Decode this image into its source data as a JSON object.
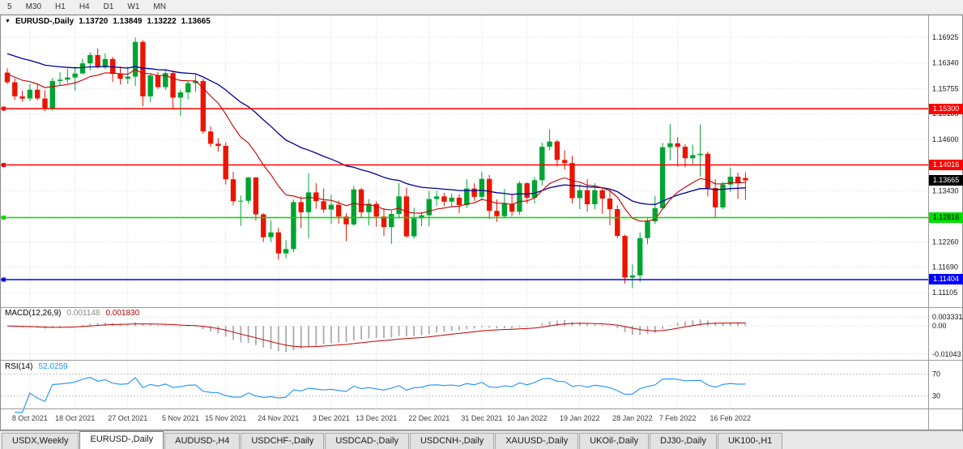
{
  "toolbar": {
    "timeframes": [
      "5",
      "M30",
      "H1",
      "H4",
      "D1",
      "W1",
      "MN"
    ]
  },
  "chart": {
    "title": {
      "symbol_period": "EURUSD-,Daily",
      "open": "1.13720",
      "high": "1.13849",
      "low": "1.13222",
      "close": "1.13665"
    },
    "colors": {
      "bull": "#00A432",
      "bear": "#EA1500",
      "ma_fast": "#C00000",
      "ma_slow": "#00009B",
      "grid": "#D9D9D9",
      "macd_hist": "#ABABAB",
      "macd_signal": "#C00000",
      "rsi_line": "#1E90FF"
    },
    "price_axis": {
      "labels": [
        "1.16925",
        "1.16340",
        "1.15755",
        "1.15185",
        "1.14600",
        "1.14015",
        "1.13430",
        "1.12845",
        "1.12260",
        "1.11690",
        "1.11105"
      ]
    },
    "hlines": [
      {
        "label": "1.15300",
        "value": 1.153,
        "color": "#FF0000",
        "text_color": "#FFFFFF"
      },
      {
        "label": "1.14016",
        "value": 1.14016,
        "color": "#FF0000",
        "text_color": "#FFFFFF"
      },
      {
        "label": "1.12816",
        "value": 1.12816,
        "color": "#00DC00",
        "text_color": "#000000"
      },
      {
        "label": "1.11404",
        "value": 1.11404,
        "color": "#0000FF",
        "text_color": "#FFFFFF"
      }
    ],
    "current_price": {
      "label": "1.13665",
      "value": 1.13665,
      "bg": "#000000",
      "text_color": "#FFFFFF"
    },
    "ma_periods": {
      "fast": 13,
      "slow": 34,
      "fast_seed": 1.1612,
      "slow_seed": 1.1659
    }
  },
  "macd": {
    "header_label": "MACD(12,26,9)",
    "value_main": "0.001148",
    "value_signal": "0.001830",
    "params": {
      "fast": 12,
      "slow": 26,
      "signal": 9
    },
    "axis_labels": [
      {
        "text": "0.003331",
        "value": 0.003331
      },
      {
        "text": "0.00",
        "value": 0
      },
      {
        "text": "-0.01043",
        "value": -0.01043
      }
    ]
  },
  "rsi": {
    "header_label": "RSI(14)",
    "value": "52.0259",
    "period": 14,
    "levels": [
      70,
      30
    ],
    "axis_labels": [
      "70",
      "30"
    ]
  },
  "tabs": [
    {
      "label": "USDX,Weekly",
      "active": false
    },
    {
      "label": "EURUSD-,Daily",
      "active": true
    },
    {
      "label": "AUDUSD-,H4",
      "active": false
    },
    {
      "label": "USDCHF-,Daily",
      "active": false
    },
    {
      "label": "USDCAD-,Daily",
      "active": false
    },
    {
      "label": "USDCNH-,Daily",
      "active": false
    },
    {
      "label": "XAUUSD-,Daily",
      "active": false
    },
    {
      "label": "UKOil-,Daily",
      "active": false
    },
    {
      "label": "DJ30-,Daily",
      "active": false
    },
    {
      "label": "UK100-,H1",
      "active": false
    }
  ],
  "chart_data": {
    "type": "candlestick",
    "symbol": "EURUSD-",
    "timeframe": "Daily",
    "date_labels": [
      {
        "text": "8 Oct 2021",
        "index": 3
      },
      {
        "text": "18 Oct 2021",
        "index": 9
      },
      {
        "text": "27 Oct 2021",
        "index": 16
      },
      {
        "text": "5 Nov 2021",
        "index": 23
      },
      {
        "text": "15 Nov 2021",
        "index": 29
      },
      {
        "text": "24 Nov 2021",
        "index": 36
      },
      {
        "text": "3 Dec 2021",
        "index": 43
      },
      {
        "text": "13 Dec 2021",
        "index": 49
      },
      {
        "text": "22 Dec 2021",
        "index": 56
      },
      {
        "text": "31 Dec 2021",
        "index": 63
      },
      {
        "text": "10 Jan 2022",
        "index": 69
      },
      {
        "text": "19 Jan 2022",
        "index": 76
      },
      {
        "text": "28 Jan 2022",
        "index": 83
      },
      {
        "text": "7 Feb 2022",
        "index": 89
      },
      {
        "text": "16 Feb 2022",
        "index": 96
      }
    ],
    "ohlc": [
      [
        1.1612,
        1.1622,
        1.1586,
        1.159
      ],
      [
        1.159,
        1.1599,
        1.155,
        1.1558
      ],
      [
        1.1558,
        1.1571,
        1.1546,
        1.1553
      ],
      [
        1.1553,
        1.1586,
        1.1547,
        1.1573
      ],
      [
        1.1573,
        1.1586,
        1.1549,
        1.1553
      ],
      [
        1.1553,
        1.1572,
        1.1524,
        1.153
      ],
      [
        1.153,
        1.16,
        1.1525,
        1.1593
      ],
      [
        1.1593,
        1.1613,
        1.1583,
        1.1596
      ],
      [
        1.1596,
        1.1621,
        1.1588,
        1.1601
      ],
      [
        1.1601,
        1.1626,
        1.1571,
        1.161
      ],
      [
        1.161,
        1.1644,
        1.1609,
        1.1633
      ],
      [
        1.1633,
        1.1658,
        1.1617,
        1.1652
      ],
      [
        1.1652,
        1.1667,
        1.1622,
        1.1624
      ],
      [
        1.1624,
        1.1656,
        1.162,
        1.1643
      ],
      [
        1.1643,
        1.1648,
        1.1591,
        1.1609
      ],
      [
        1.1609,
        1.1626,
        1.1585,
        1.1598
      ],
      [
        1.1598,
        1.1626,
        1.1586,
        1.1603
      ],
      [
        1.1603,
        1.1692,
        1.1582,
        1.1682
      ],
      [
        1.1682,
        1.1686,
        1.1535,
        1.1558
      ],
      [
        1.1558,
        1.161,
        1.1545,
        1.1606
      ],
      [
        1.1606,
        1.1614,
        1.1575,
        1.1579
      ],
      [
        1.1579,
        1.1617,
        1.1572,
        1.1611
      ],
      [
        1.1611,
        1.1617,
        1.1528,
        1.1555
      ],
      [
        1.1555,
        1.1573,
        1.1513,
        1.1567
      ],
      [
        1.1567,
        1.1594,
        1.1551,
        1.1588
      ],
      [
        1.1588,
        1.1609,
        1.1568,
        1.1593
      ],
      [
        1.1593,
        1.1598,
        1.1473,
        1.1478
      ],
      [
        1.1478,
        1.149,
        1.1443,
        1.145
      ],
      [
        1.145,
        1.1463,
        1.1432,
        1.1445
      ],
      [
        1.1445,
        1.1453,
        1.1357,
        1.1369
      ],
      [
        1.1369,
        1.1386,
        1.131,
        1.1319
      ],
      [
        1.1319,
        1.1332,
        1.1263,
        1.132
      ],
      [
        1.132,
        1.1374,
        1.1313,
        1.1373
      ],
      [
        1.1373,
        1.1374,
        1.1275,
        1.1289
      ],
      [
        1.1289,
        1.1292,
        1.1226,
        1.1237
      ],
      [
        1.1237,
        1.1275,
        1.1226,
        1.1248
      ],
      [
        1.1248,
        1.1258,
        1.1186,
        1.12
      ],
      [
        1.12,
        1.123,
        1.1189,
        1.121
      ],
      [
        1.121,
        1.1323,
        1.1203,
        1.1317
      ],
      [
        1.1317,
        1.133,
        1.1258,
        1.1294
      ],
      [
        1.1294,
        1.1383,
        1.1235,
        1.1339
      ],
      [
        1.1339,
        1.136,
        1.1302,
        1.1319
      ],
      [
        1.1319,
        1.1348,
        1.1293,
        1.13
      ],
      [
        1.13,
        1.1334,
        1.1267,
        1.1311
      ],
      [
        1.1311,
        1.132,
        1.1268,
        1.1284
      ],
      [
        1.1284,
        1.1291,
        1.1228,
        1.1266
      ],
      [
        1.1266,
        1.1354,
        1.1263,
        1.1346
      ],
      [
        1.1346,
        1.135,
        1.128,
        1.1294
      ],
      [
        1.1294,
        1.1324,
        1.1264,
        1.1313
      ],
      [
        1.1313,
        1.1319,
        1.1261,
        1.1284
      ],
      [
        1.1284,
        1.1303,
        1.124,
        1.126
      ],
      [
        1.126,
        1.1298,
        1.1222,
        1.129
      ],
      [
        1.129,
        1.136,
        1.128,
        1.133
      ],
      [
        1.133,
        1.135,
        1.1236,
        1.1239
      ],
      [
        1.1239,
        1.1304,
        1.1234,
        1.128
      ],
      [
        1.128,
        1.1295,
        1.1262,
        1.1287
      ],
      [
        1.1287,
        1.1342,
        1.1262,
        1.1324
      ],
      [
        1.1324,
        1.1343,
        1.1308,
        1.133
      ],
      [
        1.133,
        1.1338,
        1.1308,
        1.1318
      ],
      [
        1.1318,
        1.1336,
        1.1305,
        1.1327
      ],
      [
        1.1327,
        1.1335,
        1.1292,
        1.131
      ],
      [
        1.131,
        1.1369,
        1.1303,
        1.1348
      ],
      [
        1.1348,
        1.136,
        1.132,
        1.1329
      ],
      [
        1.1329,
        1.1386,
        1.1321,
        1.137
      ],
      [
        1.137,
        1.1379,
        1.1279,
        1.1297
      ],
      [
        1.1297,
        1.1323,
        1.1272,
        1.1285
      ],
      [
        1.1285,
        1.1347,
        1.128,
        1.1313
      ],
      [
        1.1313,
        1.1334,
        1.1285,
        1.1295
      ],
      [
        1.1295,
        1.1365,
        1.1288,
        1.136
      ],
      [
        1.136,
        1.1362,
        1.1313,
        1.1327
      ],
      [
        1.1327,
        1.1374,
        1.1314,
        1.1367
      ],
      [
        1.1367,
        1.1453,
        1.1355,
        1.1443
      ],
      [
        1.1443,
        1.1483,
        1.1435,
        1.1455
      ],
      [
        1.1455,
        1.1459,
        1.1398,
        1.1413
      ],
      [
        1.1413,
        1.1435,
        1.1391,
        1.1406
      ],
      [
        1.1406,
        1.1422,
        1.1314,
        1.1326
      ],
      [
        1.1326,
        1.1357,
        1.1301,
        1.1344
      ],
      [
        1.1344,
        1.1369,
        1.1295,
        1.1312
      ],
      [
        1.1312,
        1.136,
        1.13,
        1.1344
      ],
      [
        1.1344,
        1.1349,
        1.129,
        1.1325
      ],
      [
        1.1325,
        1.1345,
        1.1264,
        1.1301
      ],
      [
        1.1301,
        1.131,
        1.1235,
        1.124
      ],
      [
        1.124,
        1.1243,
        1.1131,
        1.1145
      ],
      [
        1.1145,
        1.1175,
        1.1121,
        1.115
      ],
      [
        1.115,
        1.1248,
        1.1135,
        1.1235
      ],
      [
        1.1235,
        1.128,
        1.1221,
        1.1273
      ],
      [
        1.1273,
        1.1331,
        1.1267,
        1.1303
      ],
      [
        1.1303,
        1.1452,
        1.13,
        1.1442
      ],
      [
        1.1442,
        1.1495,
        1.1412,
        1.1451
      ],
      [
        1.1451,
        1.1465,
        1.1398,
        1.1443
      ],
      [
        1.1443,
        1.1449,
        1.1396,
        1.1417
      ],
      [
        1.1417,
        1.1448,
        1.1402,
        1.1424
      ],
      [
        1.1424,
        1.1494,
        1.1375,
        1.1427
      ],
      [
        1.1427,
        1.1432,
        1.133,
        1.1349
      ],
      [
        1.1349,
        1.1369,
        1.128,
        1.1305
      ],
      [
        1.1305,
        1.1363,
        1.1301,
        1.1357
      ],
      [
        1.1357,
        1.1396,
        1.134,
        1.1375
      ],
      [
        1.1375,
        1.1384,
        1.1324,
        1.1362
      ],
      [
        1.1372,
        1.13849,
        1.13222,
        1.13665
      ]
    ]
  }
}
